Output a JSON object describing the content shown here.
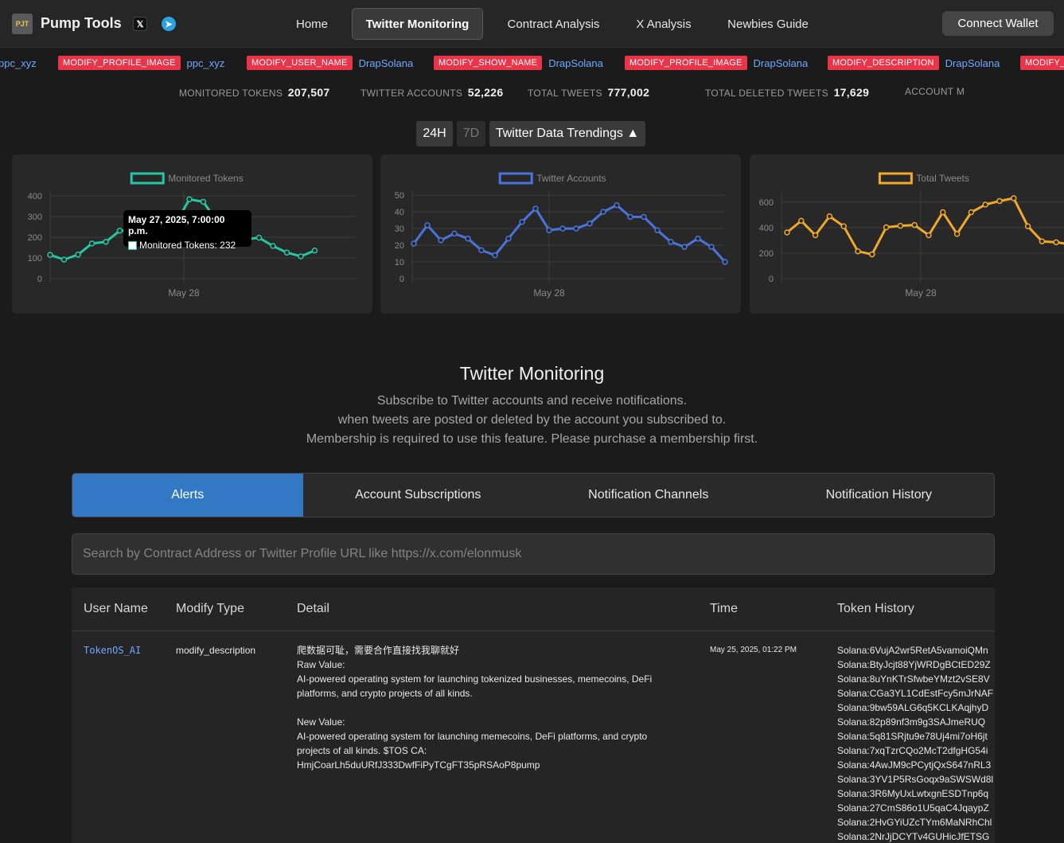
{
  "nav": {
    "logo_text": "PJT",
    "brand": "Pump Tools",
    "social_x": "𝕏",
    "social_tg": "➤",
    "links": [
      "Home",
      "Twitter Monitoring",
      "Contract Analysis",
      "X Analysis",
      "Newbies Guide"
    ],
    "active_link": "Twitter Monitoring",
    "connect_wallet": "Connect Wallet"
  },
  "ticker": [
    {
      "badge": "",
      "user": "ppc_xyz"
    },
    {
      "badge": "MODIFY_PROFILE_IMAGE",
      "user": "ppc_xyz"
    },
    {
      "badge": "MODIFY_USER_NAME",
      "user": "DrapSolana"
    },
    {
      "badge": "MODIFY_SHOW_NAME",
      "user": "DrapSolana"
    },
    {
      "badge": "MODIFY_PROFILE_IMAGE",
      "user": "DrapSolana"
    },
    {
      "badge": "MODIFY_DESCRIPTION",
      "user": "DrapSolana"
    },
    {
      "badge": "MODIFY_",
      "user": ""
    }
  ],
  "stats": [
    {
      "label": "MONITORED TOKENS",
      "value": "207,507"
    },
    {
      "label": "TWITTER ACCOUNTS",
      "value": "52,226"
    },
    {
      "label": "TOTAL TWEETS",
      "value": "777,002"
    },
    {
      "label": "TOTAL DELETED TWEETS",
      "value": "17,629"
    },
    {
      "label": "ACCOUNT M",
      "value": ""
    }
  ],
  "trend_controls": {
    "btn_24h": "24H",
    "btn_7d": "7D",
    "toggle": "Twitter Data Trendings ▲"
  },
  "chart_data": [
    {
      "type": "line",
      "title": "",
      "series": [
        {
          "name": "Monitored Tokens",
          "color": "#26c7a4",
          "values": [
            115,
            92,
            116,
            170,
            178,
            232,
            230,
            232,
            225,
            265,
            384,
            372,
            275,
            235,
            190,
            198,
            158,
            126,
            108,
            136
          ]
        }
      ],
      "yticks": [
        0,
        100,
        200,
        300,
        400
      ],
      "ylim": [
        0,
        420
      ],
      "xlabel_tick": "May 28",
      "tooltip": {
        "title": "May 27, 2025, 7:00:00 p.m.",
        "line": "Monitored Tokens: 232"
      }
    },
    {
      "type": "line",
      "title": "",
      "series": [
        {
          "name": "Twitter Accounts",
          "color": "#4a74dc",
          "values": [
            21,
            32,
            23,
            27,
            24,
            17,
            14,
            24,
            34,
            42,
            29,
            30,
            30,
            33,
            40,
            44,
            37,
            37,
            29,
            22,
            19,
            24,
            19,
            10
          ]
        }
      ],
      "yticks": [
        0,
        10,
        20,
        30,
        40,
        50
      ],
      "ylim": [
        0,
        52
      ],
      "xlabel_tick": "May 28"
    },
    {
      "type": "line",
      "title": "",
      "series": [
        {
          "name": "Total Tweets",
          "color": "#f0a92b",
          "values": [
            362,
            453,
            340,
            488,
            410,
            214,
            190,
            402,
            414,
            420,
            340,
            520,
            350,
            520,
            580,
            608,
            630,
            410,
            292,
            285,
            268,
            250
          ]
        }
      ],
      "yticks": [
        0,
        200,
        400,
        600
      ],
      "ylim": [
        0,
        680
      ],
      "xlabel_tick": "May 28"
    }
  ],
  "section": {
    "title": "Twitter Monitoring",
    "desc1": "Subscribe to Twitter accounts and receive notifications.",
    "desc2": "when tweets are posted or deleted by the account you subscribed to.",
    "desc3": "Membership is required to use this feature. Please purchase a membership first."
  },
  "tabs": [
    "Alerts",
    "Account Subscriptions",
    "Notification Channels",
    "Notification History"
  ],
  "search": {
    "placeholder": "Search by Contract Address or Twitter Profile URL like https://x.com/elonmusk"
  },
  "table": {
    "headers": [
      "User Name",
      "Modify Type",
      "Detail",
      "Time",
      "Token History"
    ],
    "row": {
      "user": "TokenOS_AI",
      "type": "modify_description",
      "detail": [
        "爬数据可耻，需要合作直接找我聊就好",
        "Raw Value:",
        "AI-powered operating system for launching tokenized businesses, memecoins, DeFi",
        "platforms, and crypto projects of all kinds.",
        "",
        "New Value:",
        "AI-powered operating system for launching memecoins, DeFi platforms, and crypto",
        "projects of all kinds. $TOS CA:",
        "HmjCoarLh5duURfJ333DwfFiPyTCgFT35pRSAoP8pump"
      ],
      "time": "May 25, 2025, 01:22 PM",
      "history": [
        "Solana:6VujA2wr5RetA5vamoiQMn",
        "Solana:BtyJcjt88YjWRDgBCtED29Z",
        "Solana:8uYnKTrSfwbeYMzt2vSE8V",
        "Solana:CGa3YL1CdEstFcy5mJrNAF",
        "Solana:9bw59ALG6q5KCLKAqjhyD",
        "Solana:82p89nf3m9g3SAJmeRUQ",
        "Solana:5q81SRjtu9e78Uj4mi7oH6jt",
        "Solana:7xqTzrCQo2McT2dfgHG54i",
        "Solana:4AwJM9cPCytjQxS647nRL3",
        "Solana:3YV1P5RsGoqx9aSWSWd8l",
        "Solana:3R6MyUxLwtxgnESDTnp6q",
        "Solana:27CmS86o1U5qaC4JqaypZ",
        "Solana:2HvGYiUZcTYm6MaNRhChl",
        "Solana:2NrJjDCYTv4GUHicJfETSG"
      ]
    }
  }
}
